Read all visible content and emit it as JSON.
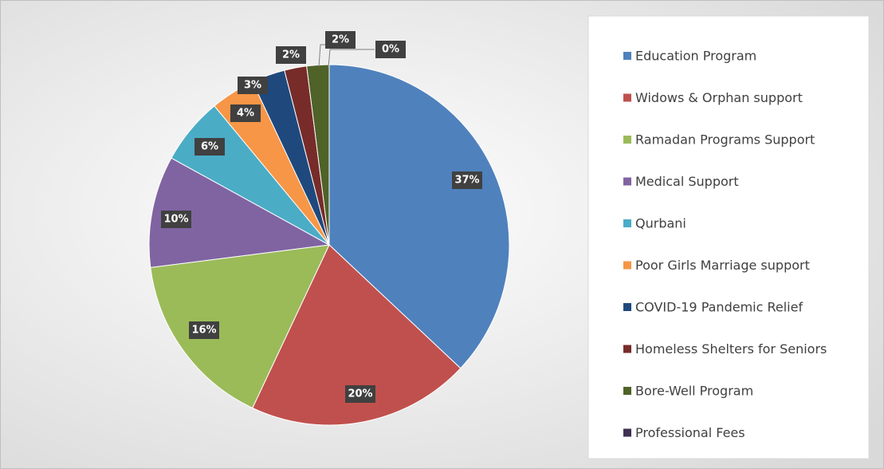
{
  "chart_data": {
    "type": "pie",
    "categories": [
      "Education Program",
      "Widows & Orphan support",
      "Ramadan Programs Support",
      "Medical Support",
      "Qurbani",
      "Poor Girls Marriage  support",
      "COVID-19 Pandemic Relief",
      "Homeless Shelters for Seniors",
      "Bore-Well Program",
      "Professional Fees"
    ],
    "values": [
      37,
      20,
      16,
      10,
      6,
      4,
      3,
      2,
      2,
      0
    ],
    "value_labels": [
      "37%",
      "20%",
      "16%",
      "10%",
      "6%",
      "4%",
      "3%",
      "2%",
      "2%",
      "0%"
    ],
    "colors": [
      "#4f81bd",
      "#c0504d",
      "#9bbb59",
      "#8064a2",
      "#4bacc6",
      "#f79646",
      "#1f497d",
      "#772c2a",
      "#4f6228",
      "#3f3151"
    ],
    "legend": "right"
  }
}
